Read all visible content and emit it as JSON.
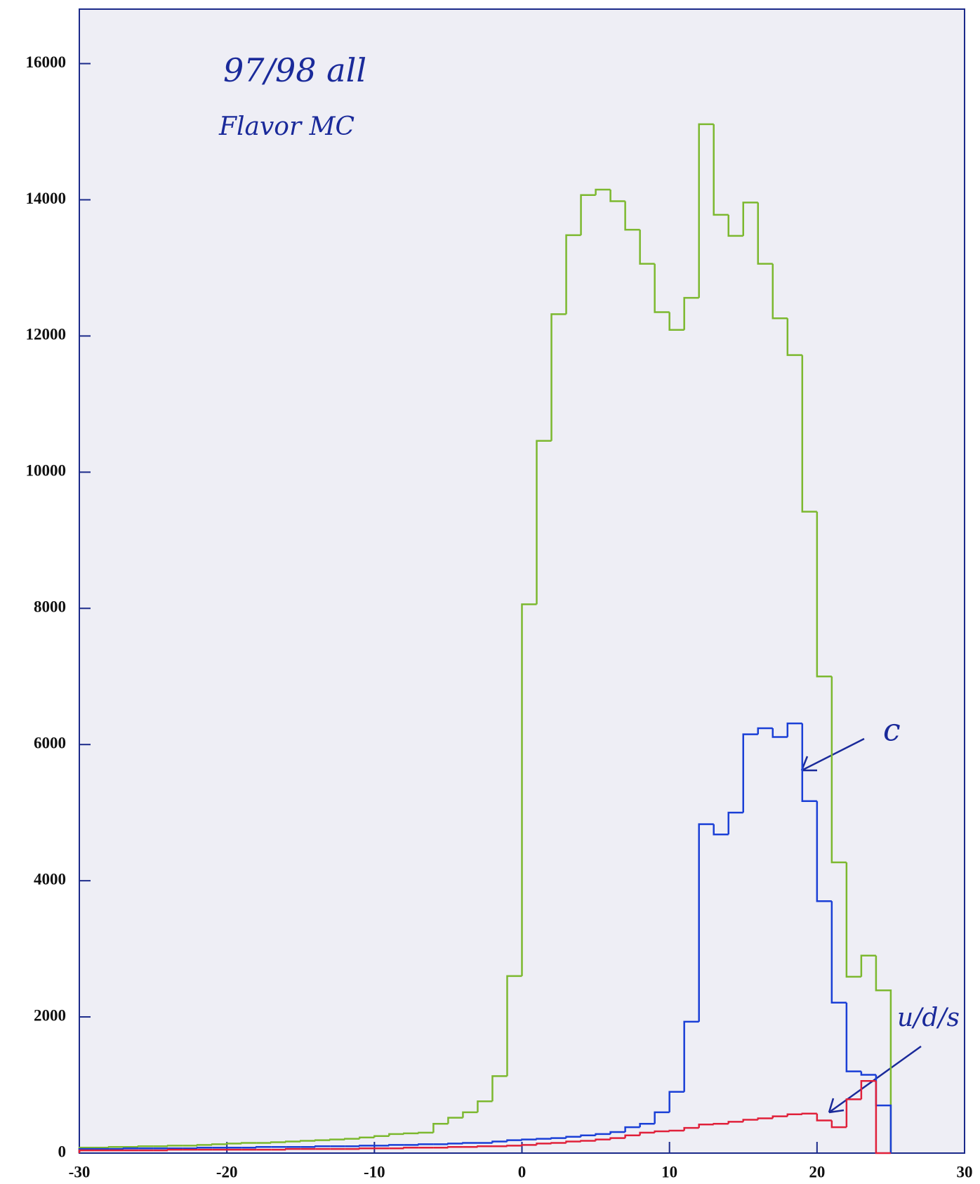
{
  "chart_data": {
    "type": "histogram",
    "bins": [
      -30,
      -29,
      -28,
      -27,
      -26,
      -25,
      -24,
      -23,
      -22,
      -21,
      -20,
      -19,
      -18,
      -17,
      -16,
      -15,
      -14,
      -13,
      -12,
      -11,
      -10,
      -9,
      -8,
      -7,
      -6,
      -5,
      -4,
      -3,
      -2,
      -1,
      0,
      1,
      2,
      3,
      4,
      5,
      6,
      7,
      8,
      9,
      10,
      11,
      12,
      13,
      14,
      15,
      16,
      17,
      18,
      19,
      20,
      21,
      22,
      23,
      24,
      25
    ],
    "series": [
      {
        "color": "#7cb82f",
        "values": [
          80,
          80,
          90,
          90,
          100,
          100,
          110,
          110,
          120,
          130,
          140,
          150,
          150,
          160,
          170,
          180,
          190,
          200,
          210,
          230,
          250,
          280,
          290,
          300,
          430,
          520,
          600,
          760,
          1130,
          2600,
          8060,
          10460,
          12320,
          13480,
          14070,
          14150,
          13980,
          13560,
          13060,
          12350,
          12090,
          12560,
          15110,
          13780,
          13470,
          13960,
          13060,
          12260,
          11720,
          9420,
          7000,
          4270,
          2590,
          2900,
          2390
        ]
      },
      {
        "name": "c",
        "color": "#1a3fd6",
        "values": [
          60,
          60,
          60,
          70,
          70,
          70,
          70,
          70,
          80,
          80,
          80,
          80,
          90,
          90,
          90,
          90,
          100,
          100,
          100,
          110,
          110,
          120,
          120,
          130,
          130,
          140,
          150,
          150,
          170,
          190,
          200,
          210,
          220,
          240,
          260,
          280,
          310,
          380,
          430,
          600,
          900,
          1930,
          4830,
          4680,
          5000,
          6150,
          6240,
          6110,
          6310,
          5170,
          3700,
          2210,
          1200,
          1150,
          700
        ]
      },
      {
        "name": "u/d/s",
        "color": "#e0203a",
        "values": [
          40,
          40,
          40,
          40,
          40,
          40,
          50,
          50,
          50,
          50,
          50,
          50,
          50,
          50,
          60,
          60,
          60,
          60,
          60,
          70,
          70,
          70,
          80,
          80,
          80,
          90,
          90,
          100,
          100,
          110,
          120,
          140,
          150,
          170,
          180,
          200,
          220,
          260,
          300,
          320,
          330,
          370,
          420,
          430,
          460,
          490,
          510,
          540,
          570,
          580,
          480,
          380,
          790,
          1060,
          0
        ]
      }
    ],
    "annotations": [
      "97/98 all",
      "Flavor MC"
    ],
    "xlim": [
      -30,
      30
    ],
    "xticks": [
      -30,
      -20,
      -10,
      0,
      10,
      20,
      30
    ],
    "ylim": [
      0,
      16800
    ],
    "yticks": [
      0,
      2000,
      4000,
      6000,
      8000,
      10000,
      12000,
      14000,
      16000
    ]
  }
}
